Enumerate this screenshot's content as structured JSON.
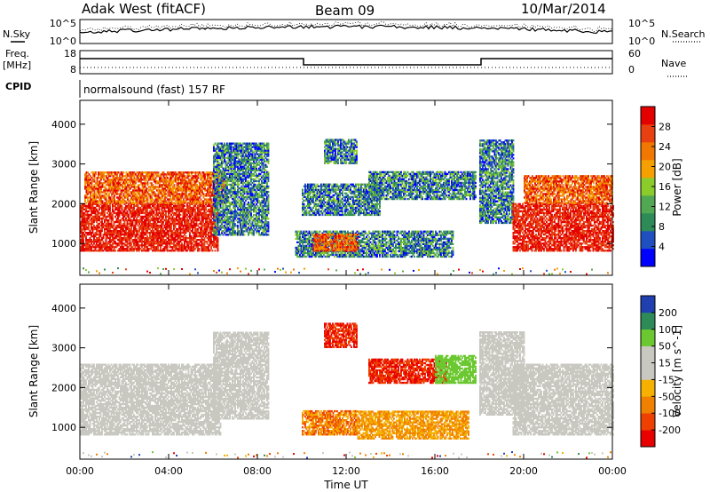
{
  "header": {
    "station": "Adak West (fitACF)",
    "beam": "Beam 09",
    "date": "10/Mar/2014"
  },
  "noise_panel": {
    "left_label": "N.Sky",
    "left_ticks": [
      "10^5",
      "10^0"
    ],
    "right_ticks": [
      "10^5",
      "10^0"
    ],
    "right_label": "N.Search"
  },
  "freq_panel": {
    "left_label_1": "Freq.",
    "left_label_2": "[MHz]",
    "left_ticks": [
      "18",
      "8"
    ],
    "right_ticks": [
      "60",
      "0"
    ],
    "right_label": "Nave"
  },
  "cpid_panel": {
    "label": "CPID",
    "program": "normalsound (fast) 157 RF"
  },
  "colors": {
    "power_scale": [
      "#0000ff",
      "#2050c0",
      "#2e8b57",
      "#52a852",
      "#8ccc2a",
      "#f5a000",
      "#f07800",
      "#e84010",
      "#e40000"
    ],
    "velocity_scale": [
      "#e80000",
      "#ee4000",
      "#f08000",
      "#f5b000",
      "#c8c8c0",
      "#c8c8c0",
      "#6cc830",
      "#2e8b57",
      "#2040b0"
    ]
  },
  "chart_data": [
    {
      "type": "heatmap",
      "parameter": "Power",
      "xlabel": "",
      "ylabel": "Slant Range [km]",
      "x_ticks": [
        "00:00",
        "04:00",
        "08:00",
        "12:00",
        "16:00",
        "20:00",
        "00:00"
      ],
      "x_hours": [
        0,
        4,
        8,
        12,
        16,
        20,
        24
      ],
      "xlim": [
        0,
        24
      ],
      "y_ticks": [
        "1000",
        "2000",
        "3000",
        "4000"
      ],
      "y_values": [
        1000,
        2000,
        3000,
        4000
      ],
      "ylim": [
        200,
        4600
      ],
      "colorbar": {
        "label": "Power [dB]",
        "ticks": [
          "4",
          "8",
          "12",
          "16",
          "20",
          "24",
          "28"
        ],
        "range": [
          0,
          30
        ]
      },
      "regions": [
        {
          "t0": 0.0,
          "t1": 6.2,
          "r0": 800,
          "r1": 2000,
          "class": "high"
        },
        {
          "t0": 0.2,
          "t1": 6.5,
          "r0": 2000,
          "r1": 2800,
          "class": "mid"
        },
        {
          "t0": 6.0,
          "t1": 8.5,
          "r0": 1200,
          "r1": 3500,
          "class": "low"
        },
        {
          "t0": 9.7,
          "t1": 16.8,
          "r0": 650,
          "r1": 1300,
          "class": "low"
        },
        {
          "t0": 10.5,
          "t1": 12.5,
          "r0": 800,
          "r1": 1250,
          "class": "mid"
        },
        {
          "t0": 10.0,
          "t1": 13.5,
          "r0": 1700,
          "r1": 2500,
          "class": "low"
        },
        {
          "t0": 13.0,
          "t1": 17.8,
          "r0": 2100,
          "r1": 2800,
          "class": "low"
        },
        {
          "t0": 11.0,
          "t1": 12.5,
          "r0": 3000,
          "r1": 3600,
          "class": "low"
        },
        {
          "t0": 18.0,
          "t1": 19.5,
          "r0": 1500,
          "r1": 3600,
          "class": "low"
        },
        {
          "t0": 19.5,
          "t1": 24.0,
          "r0": 800,
          "r1": 2000,
          "class": "high"
        },
        {
          "t0": 20.0,
          "t1": 24.0,
          "r0": 2000,
          "r1": 2700,
          "class": "mid"
        }
      ]
    },
    {
      "type": "heatmap",
      "parameter": "Velocity",
      "xlabel": "Time UT",
      "ylabel": "Slant Range [km]",
      "x_ticks": [
        "00:00",
        "04:00",
        "08:00",
        "12:00",
        "16:00",
        "20:00",
        "00:00"
      ],
      "x_hours": [
        0,
        4,
        8,
        12,
        16,
        20,
        24
      ],
      "xlim": [
        0,
        24
      ],
      "y_ticks": [
        "1000",
        "2000",
        "3000",
        "4000"
      ],
      "y_values": [
        1000,
        2000,
        3000,
        4000
      ],
      "ylim": [
        200,
        4600
      ],
      "colorbar": {
        "label": "Velocity [m s^-1]",
        "ticks": [
          "-200",
          "-100",
          "-50",
          "-15",
          "15",
          "50",
          "100",
          "200"
        ],
        "range": [
          -250,
          250
        ]
      },
      "regions": [
        {
          "t0": 0.0,
          "t1": 6.3,
          "r0": 800,
          "r1": 2600,
          "class": "ground"
        },
        {
          "t0": 6.0,
          "t1": 8.5,
          "r0": 1200,
          "r1": 3400,
          "class": "ground"
        },
        {
          "t0": 10.0,
          "t1": 12.5,
          "r0": 800,
          "r1": 1400,
          "class": "neg_mid"
        },
        {
          "t0": 12.5,
          "t1": 17.5,
          "r0": 700,
          "r1": 1400,
          "class": "neg_low"
        },
        {
          "t0": 13.0,
          "t1": 16.5,
          "r0": 2100,
          "r1": 2700,
          "class": "neg_high"
        },
        {
          "t0": 11.0,
          "t1": 12.5,
          "r0": 3000,
          "r1": 3600,
          "class": "neg_high"
        },
        {
          "t0": 16.0,
          "t1": 17.8,
          "r0": 2100,
          "r1": 2800,
          "class": "pos_mid"
        },
        {
          "t0": 18.0,
          "t1": 20.0,
          "r0": 1300,
          "r1": 3400,
          "class": "ground"
        },
        {
          "t0": 19.5,
          "t1": 24.0,
          "r0": 800,
          "r1": 2600,
          "class": "ground"
        }
      ]
    }
  ]
}
